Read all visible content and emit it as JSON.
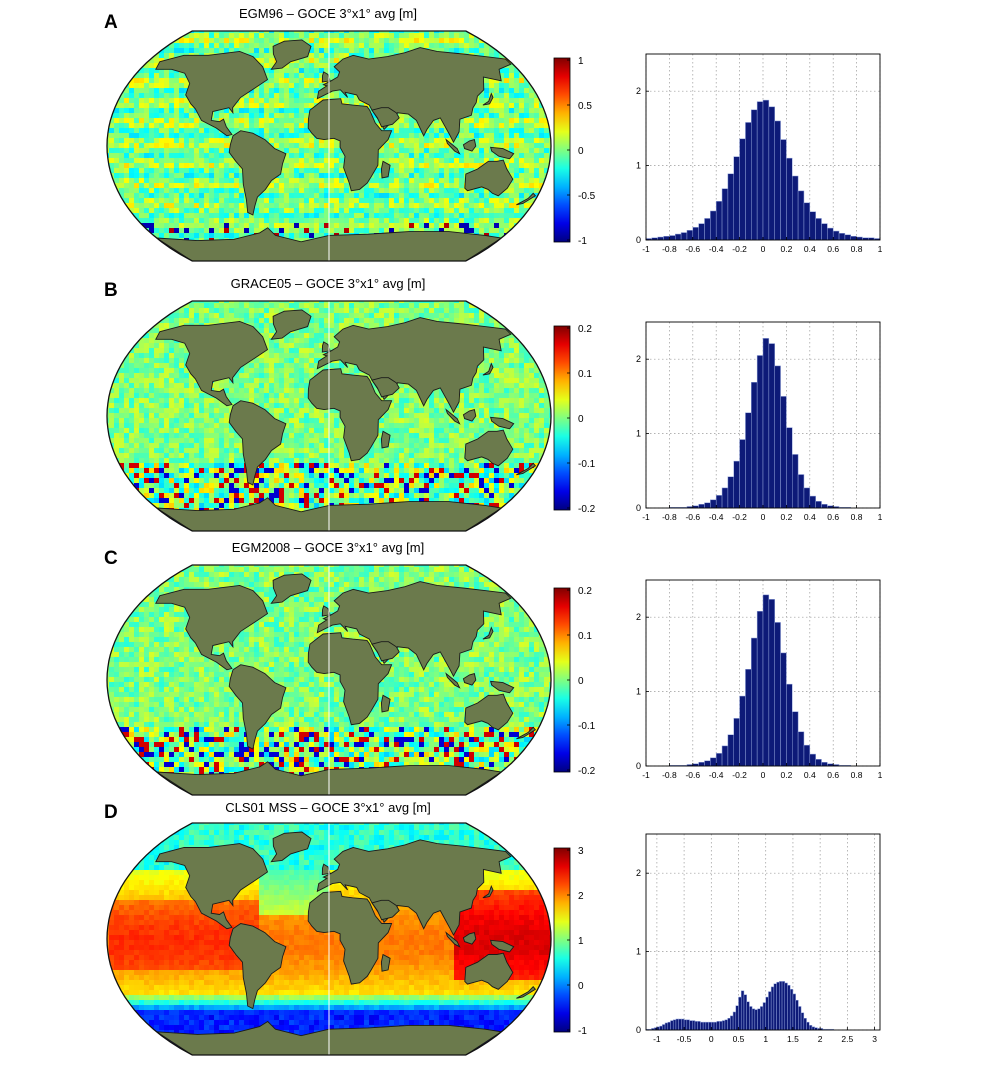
{
  "panels": [
    {
      "letter": "A",
      "title": "EGM96 – GOCE 3°x1° avg [m]",
      "map_style": "anomaly_strong",
      "colorbar_ticks": [
        "1",
        "0.5",
        "0",
        "-0.5",
        "-1"
      ],
      "chart_data": {
        "type": "bar",
        "xlim": [
          -1,
          1
        ],
        "ylim": [
          0,
          2.5
        ],
        "x_ticks": [
          -1,
          -0.8,
          -0.6,
          -0.4,
          -0.2,
          0,
          0.2,
          0.4,
          0.6,
          0.8,
          1
        ],
        "x_tick_labels": [
          "-1",
          "-0.8",
          "-0.6",
          "-0.4",
          "-0.2",
          "0",
          "0.2",
          "0.4",
          "0.6",
          "0.8",
          "1"
        ],
        "y_ticks": [
          0,
          1,
          2
        ],
        "y_tick_labels": [
          "0",
          "1",
          "2"
        ],
        "grid": true,
        "bin_start": -1,
        "bin_width": 0.05,
        "values": [
          0.02,
          0.03,
          0.04,
          0.05,
          0.06,
          0.08,
          0.1,
          0.13,
          0.17,
          0.22,
          0.29,
          0.39,
          0.52,
          0.69,
          0.89,
          1.12,
          1.36,
          1.58,
          1.75,
          1.86,
          1.88,
          1.79,
          1.6,
          1.35,
          1.1,
          0.86,
          0.66,
          0.5,
          0.38,
          0.29,
          0.22,
          0.16,
          0.12,
          0.09,
          0.07,
          0.05,
          0.04,
          0.03,
          0.03,
          0.02
        ]
      }
    },
    {
      "letter": "B",
      "title": "GRACE05 – GOCE 3°x1° avg [m]",
      "map_style": "anomaly_noisy",
      "colorbar_ticks": [
        "0.2",
        "0.1",
        "0",
        "-0.1",
        "-0.2"
      ],
      "chart_data": {
        "type": "bar",
        "xlim": [
          -1,
          1
        ],
        "ylim": [
          0,
          2.5
        ],
        "x_ticks": [
          -1,
          -0.8,
          -0.6,
          -0.4,
          -0.2,
          0,
          0.2,
          0.4,
          0.6,
          0.8,
          1
        ],
        "x_tick_labels": [
          "-1",
          "-0.8",
          "-0.6",
          "-0.4",
          "-0.2",
          "0",
          "0.2",
          "0.4",
          "0.6",
          "0.8",
          "1"
        ],
        "y_ticks": [
          0,
          1,
          2
        ],
        "y_tick_labels": [
          "0",
          "1",
          "2"
        ],
        "grid": true,
        "bin_start": -1,
        "bin_width": 0.05,
        "values": [
          0.0,
          0.0,
          0.0,
          0.0,
          0.01,
          0.01,
          0.01,
          0.02,
          0.03,
          0.05,
          0.07,
          0.11,
          0.17,
          0.27,
          0.42,
          0.63,
          0.92,
          1.28,
          1.69,
          2.05,
          2.28,
          2.21,
          1.91,
          1.5,
          1.08,
          0.72,
          0.45,
          0.27,
          0.16,
          0.09,
          0.05,
          0.03,
          0.02,
          0.01,
          0.01,
          0.0,
          0.0,
          0.0,
          0.0,
          0.0
        ]
      }
    },
    {
      "letter": "C",
      "title": "EGM2008 – GOCE 3°x1° avg [m]",
      "map_style": "anomaly_noisy",
      "colorbar_ticks": [
        "0.2",
        "0.1",
        "0",
        "-0.1",
        "-0.2"
      ],
      "chart_data": {
        "type": "bar",
        "xlim": [
          -1,
          1
        ],
        "ylim": [
          0,
          2.5
        ],
        "x_ticks": [
          -1,
          -0.8,
          -0.6,
          -0.4,
          -0.2,
          0,
          0.2,
          0.4,
          0.6,
          0.8,
          1
        ],
        "x_tick_labels": [
          "-1",
          "-0.8",
          "-0.6",
          "-0.4",
          "-0.2",
          "0",
          "0.2",
          "0.4",
          "0.6",
          "0.8",
          "1"
        ],
        "y_ticks": [
          0,
          1,
          2
        ],
        "y_tick_labels": [
          "0",
          "1",
          "2"
        ],
        "grid": true,
        "bin_start": -1,
        "bin_width": 0.05,
        "values": [
          0.0,
          0.0,
          0.0,
          0.0,
          0.01,
          0.01,
          0.01,
          0.02,
          0.03,
          0.05,
          0.07,
          0.11,
          0.17,
          0.27,
          0.42,
          0.64,
          0.94,
          1.3,
          1.72,
          2.08,
          2.3,
          2.24,
          1.93,
          1.52,
          1.1,
          0.73,
          0.46,
          0.28,
          0.16,
          0.09,
          0.05,
          0.03,
          0.02,
          0.01,
          0.01,
          0.0,
          0.0,
          0.0,
          0.0,
          0.0
        ]
      }
    },
    {
      "letter": "D",
      "title": "CLS01 MSS – GOCE 3°x1° avg [m]",
      "map_style": "mss",
      "colorbar_ticks": [
        "3",
        "2",
        "1",
        "0",
        "-1"
      ],
      "chart_data": {
        "type": "bar",
        "xlim": [
          -1.2,
          3.1
        ],
        "ylim": [
          0,
          2.5
        ],
        "x_ticks": [
          -1,
          -0.5,
          0,
          0.5,
          1,
          1.5,
          2,
          2.5,
          3
        ],
        "x_tick_labels": [
          "-1",
          "-0.5",
          "0",
          "0.5",
          "1",
          "1.5",
          "2",
          "2.5",
          "3"
        ],
        "y_ticks": [
          0,
          1,
          2
        ],
        "y_tick_labels": [
          "0",
          "1",
          "2"
        ],
        "grid": true,
        "bin_start": -1.2,
        "bin_width": 0.05,
        "values": [
          0.01,
          0.01,
          0.02,
          0.03,
          0.04,
          0.05,
          0.07,
          0.09,
          0.1,
          0.12,
          0.13,
          0.14,
          0.14,
          0.14,
          0.13,
          0.13,
          0.12,
          0.12,
          0.11,
          0.11,
          0.1,
          0.1,
          0.1,
          0.1,
          0.1,
          0.1,
          0.11,
          0.11,
          0.12,
          0.13,
          0.15,
          0.18,
          0.23,
          0.31,
          0.42,
          0.5,
          0.45,
          0.36,
          0.3,
          0.27,
          0.26,
          0.27,
          0.3,
          0.35,
          0.42,
          0.49,
          0.55,
          0.59,
          0.61,
          0.62,
          0.62,
          0.6,
          0.57,
          0.52,
          0.46,
          0.38,
          0.3,
          0.22,
          0.15,
          0.1,
          0.06,
          0.04,
          0.03,
          0.02,
          0.02,
          0.01,
          0.01,
          0.01,
          0.01,
          0.0,
          0.0,
          0.0,
          0.0,
          0.0,
          0.0,
          0.0,
          0.0,
          0.0,
          0.0,
          0.0,
          0.0,
          0.0,
          0.0,
          0.0,
          0.0,
          0.0
        ]
      }
    }
  ],
  "colors": {
    "land": "#6b7a4c",
    "coast": "#1a1a1a",
    "bar_fill": "#0d1a78",
    "bar_stroke": "#8fa0d8",
    "grid": "#9a9a9a"
  }
}
